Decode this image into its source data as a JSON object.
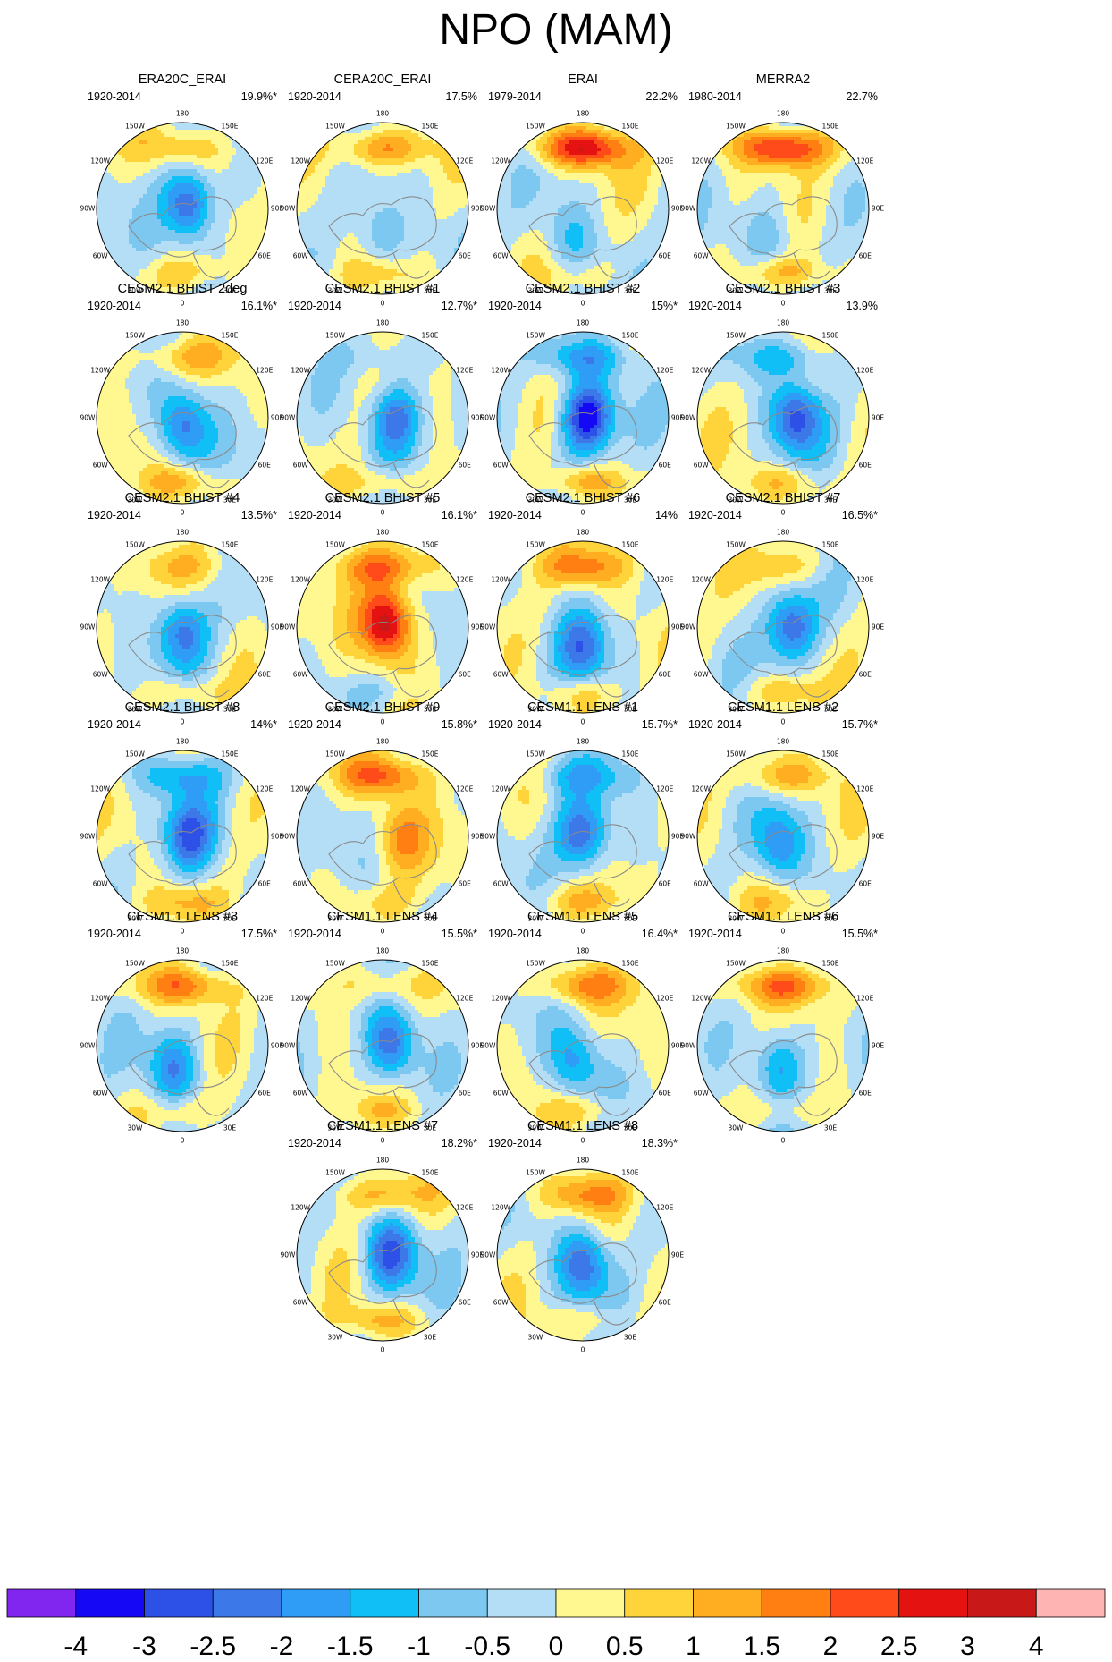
{
  "title": "NPO (MAM)",
  "longitude_labels": [
    "180",
    "150E",
    "120E",
    "90E",
    "60E",
    "30E",
    "0",
    "30W",
    "60W",
    "90W",
    "120W",
    "150W"
  ],
  "colorbar": {
    "colors": [
      "#8026ee",
      "#1408f5",
      "#2d51e6",
      "#3d78e8",
      "#2f9cf5",
      "#0fbff6",
      "#7cc8f0",
      "#b3def5",
      "#fff890",
      "#ffd43a",
      "#ffae22",
      "#ff7f12",
      "#ff4a1a",
      "#e51212",
      "#c81818",
      "#ffb4b4"
    ],
    "labels": [
      "-4",
      "-3",
      "-2.5",
      "-2",
      "-1.5",
      "-1",
      "-0.5",
      "0",
      "0.5",
      "1",
      "1.5",
      "2",
      "2.5",
      "3",
      "4"
    ]
  },
  "panels": [
    {
      "title": "ERA20C_ERAI",
      "period": "1920-2014",
      "percent": "19.9%*",
      "pattern": {
        "pac": 1.2,
        "arc": -2.8,
        "atl": 0.8,
        "arc_dx": 0.08,
        "arc_dy": -0.02
      }
    },
    {
      "title": "CERA20C_ERAI",
      "period": "1920-2014",
      "percent": "17.5%",
      "pattern": {
        "pac": 1.8,
        "arc": -1.3,
        "atl": 0.8,
        "arc_dx": -0.05,
        "arc_dy": 0.3
      }
    },
    {
      "title": "ERAI",
      "period": "1979-2014",
      "percent": "22.2%",
      "pattern": {
        "pac": 2.9,
        "arc": -1.0,
        "atl": 0.5,
        "arc_dx": -0.15,
        "arc_dy": 0.35
      }
    },
    {
      "title": "MERRA2",
      "period": "1980-2014",
      "percent": "22.7%",
      "pattern": {
        "pac": 2.9,
        "arc": -1.0,
        "atl": 1.3,
        "arc_dx": -0.15,
        "arc_dy": 0.3
      }
    },
    {
      "title": "CESM2.1 BHIST 2deg",
      "period": "1920-2014",
      "percent": "16.1%*",
      "pattern": {
        "pac": 1.2,
        "arc": -2.4,
        "atl": 1.2,
        "arc_dx": 0.0,
        "arc_dy": 0.1
      }
    },
    {
      "title": "CESM2.1 BHIST #1",
      "period": "1920-2014",
      "percent": "12.7%*",
      "pattern": {
        "pac": -0.6,
        "arc": -2.4,
        "atl": 1.0,
        "arc_dx": 0.15,
        "arc_dy": 0.0
      }
    },
    {
      "title": "CESM2.1 BHIST #2",
      "period": "1920-2014",
      "percent": "15%*",
      "pattern": {
        "pac": -1.6,
        "arc": -3.6,
        "atl": 1.4,
        "arc_dx": 0.05,
        "arc_dy": 0.0
      }
    },
    {
      "title": "CESM2.1 BHIST #3",
      "period": "1920-2014",
      "percent": "13.9%",
      "pattern": {
        "pac": -1.3,
        "arc": -2.6,
        "atl": 1.0,
        "arc_dx": 0.15,
        "arc_dy": 0.0
      }
    },
    {
      "title": "CESM2.1 BHIST #4",
      "period": "1920-2014",
      "percent": "13.5%*",
      "pattern": {
        "pac": 0.7,
        "arc": -2.3,
        "atl": 0.9,
        "arc_dx": 0.0,
        "arc_dy": 0.05
      }
    },
    {
      "title": "CESM2.1 BHIST #5",
      "period": "1920-2014",
      "percent": "16.1%*",
      "pattern": {
        "pac": 1.8,
        "arc": 3.6,
        "atl": -0.5,
        "arc_dx": 0.05,
        "arc_dy": -0.05
      }
    },
    {
      "title": "CESM2.1 BHIST #6",
      "period": "1920-2014",
      "percent": "14%",
      "pattern": {
        "pac": 1.6,
        "arc": -2.0,
        "atl": 0.8,
        "arc_dx": 0.0,
        "arc_dy": 0.25
      }
    },
    {
      "title": "CESM2.1 BHIST #7",
      "period": "1920-2014",
      "percent": "16.5%*",
      "pattern": {
        "pac": 0.8,
        "arc": -2.5,
        "atl": 1.0,
        "arc_dx": 0.1,
        "arc_dy": 0.0
      }
    },
    {
      "title": "CESM2.1 BHIST #8",
      "period": "1920-2014",
      "percent": "14%*",
      "pattern": {
        "pac": -1.4,
        "arc": -2.4,
        "atl": 0.9,
        "arc_dx": 0.08,
        "arc_dy": 0.0
      }
    },
    {
      "title": "CESM2.1 BHIST #9",
      "period": "1920-2014",
      "percent": "15.8%*",
      "pattern": {
        "pac": 2.0,
        "arc": 1.6,
        "atl": 0.6,
        "arc_dx": 0.2,
        "arc_dy": 0.0
      }
    },
    {
      "title": "CESM1.1 LENS #1",
      "period": "1920-2014",
      "percent": "15.7%*",
      "pattern": {
        "pac": -1.2,
        "arc": -2.6,
        "atl": 0.9,
        "arc_dx": 0.0,
        "arc_dy": 0.0
      }
    },
    {
      "title": "CESM1.1 LENS #2",
      "period": "1920-2014",
      "percent": "15.7%*",
      "pattern": {
        "pac": 1.4,
        "arc": -2.0,
        "atl": 0.6,
        "arc_dx": -0.05,
        "arc_dy": 0.1
      }
    },
    {
      "title": "CESM1.1 LENS #3",
      "period": "1920-2014",
      "percent": "17.5%*",
      "pattern": {
        "pac": 1.9,
        "arc": -2.0,
        "atl": 0.8,
        "arc_dx": -0.1,
        "arc_dy": 0.25
      }
    },
    {
      "title": "CESM1.1 LENS #4",
      "period": "1920-2014",
      "percent": "15.5%*",
      "pattern": {
        "pac": 1.0,
        "arc": -2.6,
        "atl": 0.8,
        "arc_dx": 0.1,
        "arc_dy": 0.0
      }
    },
    {
      "title": "CESM1.1 LENS #5",
      "period": "1920-2014",
      "percent": "16.4%*",
      "pattern": {
        "pac": 1.7,
        "arc": -1.8,
        "atl": 0.8,
        "arc_dx": -0.1,
        "arc_dy": 0.2
      }
    },
    {
      "title": "CESM1.1 LENS #6",
      "period": "1920-2014",
      "percent": "15.5%*",
      "pattern": {
        "pac": 2.0,
        "arc": -1.8,
        "atl": 0.8,
        "arc_dx": -0.05,
        "arc_dy": 0.2
      }
    },
    {
      "title": "CESM1.1 LENS #7",
      "period": "1920-2014",
      "percent": "18.2%*",
      "pattern": {
        "pac": 1.4,
        "arc": -2.8,
        "atl": 1.2,
        "arc_dx": 0.1,
        "arc_dy": 0.0
      }
    },
    {
      "title": "CESM1.1 LENS #8",
      "period": "1920-2014",
      "percent": "18.3%*",
      "pattern": {
        "pac": 1.4,
        "arc": -2.4,
        "atl": 0.8,
        "arc_dx": 0.0,
        "arc_dy": 0.1
      }
    }
  ]
}
